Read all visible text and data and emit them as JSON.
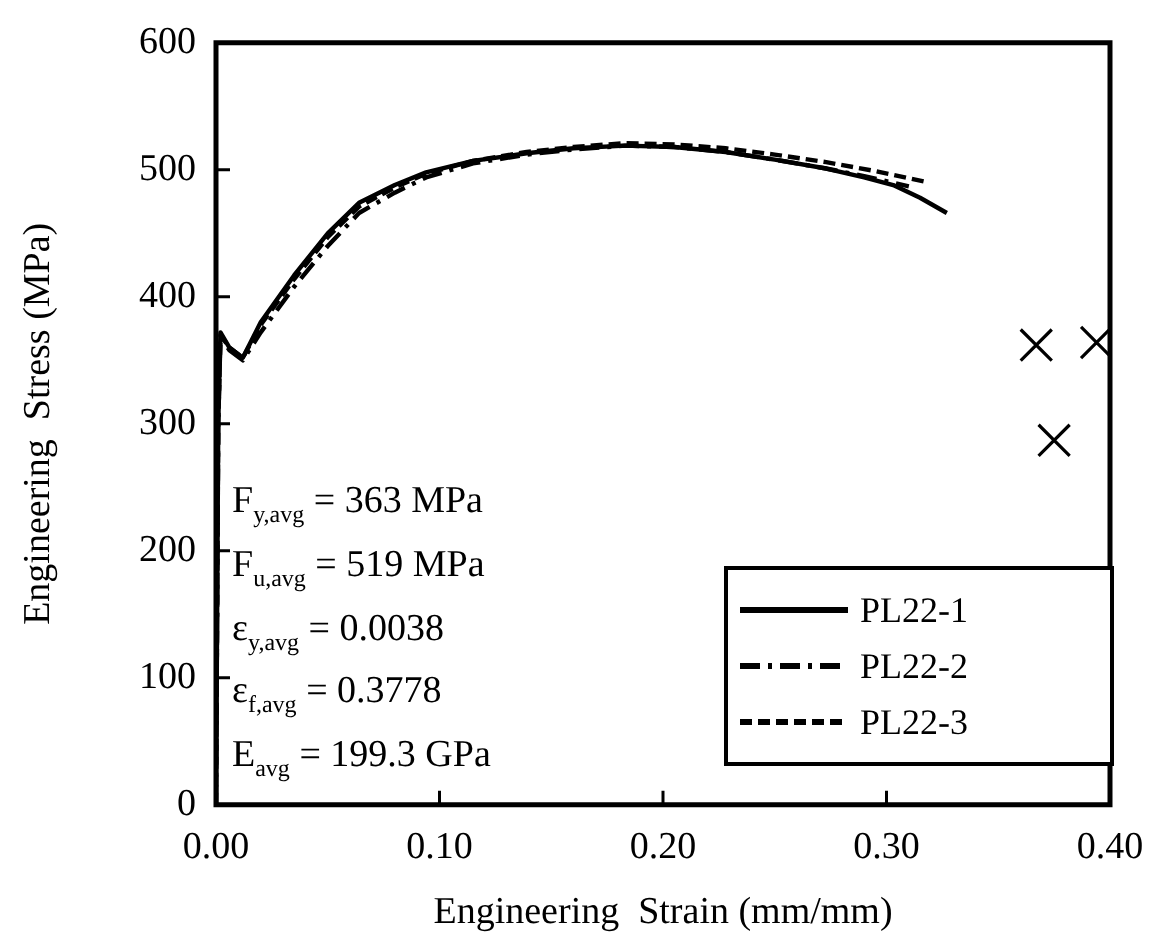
{
  "chart_data": {
    "type": "line",
    "xlabel": "Engineering  Strain (mm/mm)",
    "ylabel": "Engineering  Stress (MPa)",
    "xlim": [
      0,
      0.4
    ],
    "xticks": [
      {
        "value": 0,
        "label": "0.00"
      },
      {
        "value": 0.1,
        "label": "0.10"
      },
      {
        "value": 0.2,
        "label": "0.20"
      },
      {
        "value": 0.3,
        "label": "0.30"
      },
      {
        "value": 0.4,
        "label": "0.40"
      }
    ],
    "ylim": [
      0,
      600
    ],
    "yticks": [
      0,
      100,
      200,
      300,
      400,
      500,
      600
    ],
    "grid": false,
    "legend": "bottom right",
    "marker": "none",
    "series": [
      {
        "name": "PL22-1",
        "color": "#000000",
        "line_style": "solid",
        "x": [
          0,
          0.001,
          0.002,
          0.006,
          0.012,
          0.02,
          0.035,
          0.05,
          0.064,
          0.08,
          0.094,
          0.115,
          0.139,
          0.16,
          0.183,
          0.205,
          0.228,
          0.25,
          0.273,
          0.29,
          0.303,
          0.315,
          0.327
        ],
        "values": [
          0,
          300,
          372,
          360,
          352,
          380,
          417,
          450,
          474,
          488,
          498,
          507,
          513,
          517,
          519,
          518,
          514,
          508,
          501,
          494,
          488,
          478,
          466
        ]
      },
      {
        "name": "PL22-2",
        "color": "#000000",
        "line_style": "dashdot",
        "x": [
          0,
          0.001,
          0.002,
          0.006,
          0.012,
          0.02,
          0.035,
          0.05,
          0.064,
          0.08,
          0.094,
          0.115,
          0.139,
          0.16,
          0.183,
          0.205,
          0.228,
          0.25,
          0.273,
          0.29,
          0.31
        ],
        "values": [
          0,
          300,
          368,
          358,
          350,
          372,
          408,
          440,
          466,
          482,
          494,
          505,
          512,
          516,
          519,
          518,
          514,
          508,
          501,
          495,
          487
        ]
      },
      {
        "name": "PL22-3",
        "color": "#000000",
        "line_style": "dashed",
        "x": [
          0,
          0.001,
          0.002,
          0.006,
          0.012,
          0.02,
          0.035,
          0.05,
          0.064,
          0.08,
          0.094,
          0.115,
          0.139,
          0.16,
          0.183,
          0.205,
          0.228,
          0.25,
          0.273,
          0.295,
          0.319
        ],
        "values": [
          0,
          300,
          370,
          360,
          352,
          378,
          414,
          447,
          471,
          486,
          497,
          507,
          514,
          518,
          521,
          520,
          517,
          512,
          506,
          499,
          490
        ]
      },
      {
        "type": "scatter",
        "color": "#000000",
        "marker": "cross",
        "x": [
          0.367,
          0.375,
          0.394
        ],
        "values": [
          362,
          287,
          364
        ]
      }
    ],
    "annotations": [
      "F$_{y,avg}$ = 363 MPa",
      "F$_{u,avg}$ = 519 MPa",
      "ε$_{y,avg}$ = 0.0038",
      "ε$_{f,avg}$ = 0.3778",
      "E$_{avg}$ = 199.3 GPa"
    ]
  }
}
